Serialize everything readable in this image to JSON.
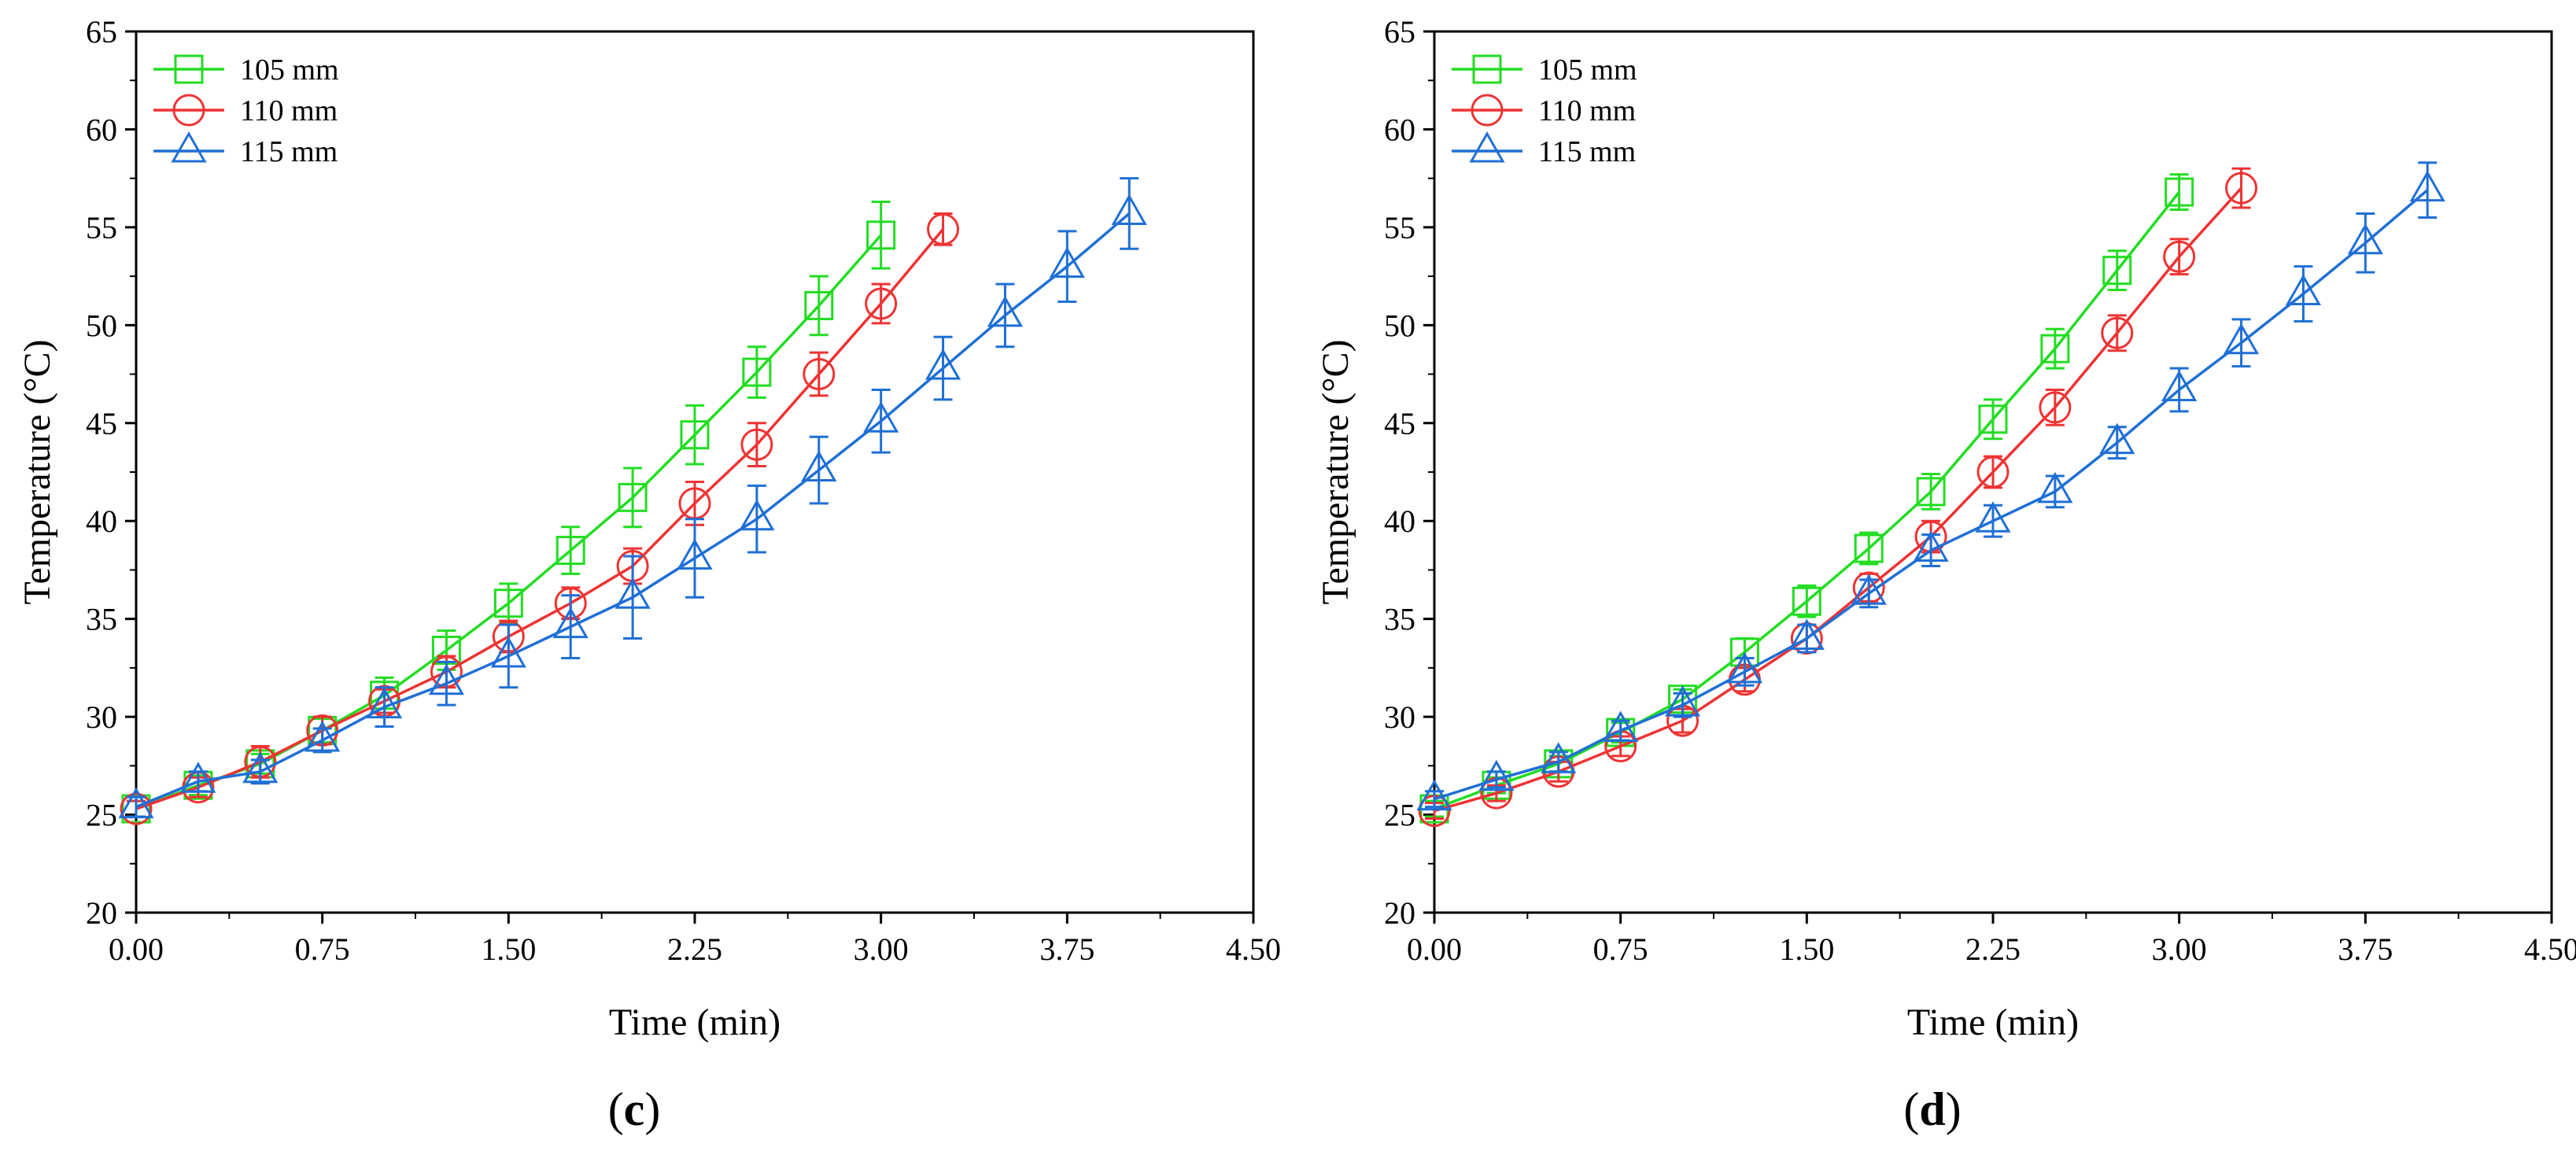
{
  "chart_data": [
    {
      "type": "line",
      "panel_label": {
        "open": "(",
        "letter": "c",
        "close": ")"
      },
      "xlabel": "Time (min)",
      "ylabel": "Temperature (°C)",
      "xlim": [
        0,
        4.5
      ],
      "ylim": [
        20,
        65
      ],
      "x_ticks": [
        "0.00",
        "0.75",
        "1.50",
        "2.25",
        "3.00",
        "3.75",
        "4.50"
      ],
      "y_ticks": [
        "20",
        "25",
        "30",
        "35",
        "40",
        "45",
        "50",
        "55",
        "60",
        "65"
      ],
      "legend_position": "top-left",
      "series": [
        {
          "name": "105 mm",
          "color": "#22dd22",
          "marker": "square",
          "x": [
            0,
            0.25,
            0.5,
            0.75,
            1.0,
            1.25,
            1.5,
            1.75,
            2.0,
            2.25,
            2.5,
            2.75,
            3.0
          ],
          "y": [
            25.3,
            26.5,
            27.6,
            29.3,
            31.1,
            33.4,
            35.8,
            38.5,
            41.2,
            44.4,
            47.6,
            51.0,
            54.6
          ],
          "err": [
            0.4,
            0.5,
            0.5,
            0.6,
            0.9,
            1.0,
            1.0,
            1.2,
            1.5,
            1.5,
            1.3,
            1.5,
            1.7
          ]
        },
        {
          "name": "110 mm",
          "color": "#ee3333",
          "marker": "circle",
          "x": [
            0,
            0.25,
            0.5,
            0.75,
            1.0,
            1.25,
            1.5,
            1.75,
            2.0,
            2.25,
            2.5,
            2.75,
            3.0,
            3.25
          ],
          "y": [
            25.3,
            26.4,
            27.7,
            29.3,
            30.8,
            32.3,
            34.1,
            35.8,
            37.7,
            40.9,
            43.9,
            47.5,
            51.1,
            54.9
          ],
          "err": [
            0.4,
            0.5,
            0.8,
            0.7,
            0.6,
            0.8,
            0.8,
            0.8,
            0.9,
            1.1,
            1.1,
            1.1,
            1.0,
            0.8
          ]
        },
        {
          "name": "115 mm",
          "color": "#1f6fd6",
          "marker": "triangle",
          "x": [
            0,
            0.25,
            0.5,
            0.75,
            1.0,
            1.25,
            1.5,
            1.75,
            2.0,
            2.25,
            2.5,
            2.75,
            3.0,
            3.25,
            3.5,
            3.75,
            4.0
          ],
          "y": [
            25.4,
            26.7,
            27.2,
            28.8,
            30.5,
            31.7,
            33.1,
            34.6,
            36.1,
            38.1,
            40.1,
            42.6,
            45.1,
            47.8,
            50.5,
            53.0,
            55.7
          ],
          "err": [
            0.5,
            0.5,
            0.6,
            0.6,
            1.0,
            1.1,
            1.6,
            1.6,
            2.1,
            2.0,
            1.7,
            1.7,
            1.6,
            1.6,
            1.6,
            1.8,
            1.8
          ]
        }
      ]
    },
    {
      "type": "line",
      "panel_label": {
        "open": "(",
        "letter": "d",
        "close": ")"
      },
      "xlabel": "Time (min)",
      "ylabel": "Temperature (°C)",
      "xlim": [
        0,
        4.5
      ],
      "ylim": [
        20,
        65
      ],
      "x_ticks": [
        "0.00",
        "0.75",
        "1.50",
        "2.25",
        "3.00",
        "3.75",
        "4.50"
      ],
      "y_ticks": [
        "20",
        "25",
        "30",
        "35",
        "40",
        "45",
        "50",
        "55",
        "60",
        "65"
      ],
      "legend_position": "top-left",
      "series": [
        {
          "name": "105 mm",
          "color": "#22dd22",
          "marker": "square",
          "x": [
            0,
            0.25,
            0.5,
            0.75,
            1.0,
            1.25,
            1.5,
            1.75,
            2.0,
            2.25,
            2.5,
            2.75,
            3.0
          ],
          "y": [
            25.3,
            26.5,
            27.6,
            29.2,
            30.9,
            33.3,
            35.9,
            38.6,
            41.5,
            45.2,
            48.8,
            52.8,
            56.8
          ],
          "err": [
            0.4,
            0.4,
            0.4,
            0.5,
            0.5,
            0.7,
            0.8,
            0.8,
            0.9,
            1.0,
            1.0,
            1.0,
            0.9
          ]
        },
        {
          "name": "110 mm",
          "color": "#ee3333",
          "marker": "circle",
          "x": [
            0,
            0.25,
            0.5,
            0.75,
            1.0,
            1.25,
            1.5,
            1.75,
            2.0,
            2.25,
            2.5,
            2.75,
            3.0,
            3.25
          ],
          "y": [
            25.2,
            26.1,
            27.2,
            28.5,
            29.8,
            31.9,
            34.0,
            36.6,
            39.2,
            42.5,
            45.8,
            49.6,
            53.5,
            57.0
          ],
          "err": [
            0.4,
            0.4,
            0.5,
            0.5,
            0.6,
            0.6,
            0.7,
            0.7,
            0.8,
            0.8,
            0.9,
            0.9,
            0.9,
            1.0
          ]
        },
        {
          "name": "115 mm",
          "color": "#1f6fd6",
          "marker": "triangle",
          "x": [
            0,
            0.25,
            0.5,
            0.75,
            1.0,
            1.25,
            1.5,
            1.75,
            2.0,
            2.25,
            2.5,
            2.75,
            3.0,
            3.25,
            3.5,
            3.75,
            4.0
          ],
          "y": [
            25.8,
            26.8,
            27.7,
            29.3,
            30.6,
            32.3,
            34.0,
            36.3,
            38.5,
            40.0,
            41.5,
            44.0,
            46.7,
            49.1,
            51.6,
            54.2,
            56.9
          ],
          "err": [
            0.4,
            0.4,
            0.5,
            0.5,
            0.6,
            0.7,
            0.7,
            0.7,
            0.8,
            0.8,
            0.8,
            0.8,
            1.1,
            1.2,
            1.4,
            1.5,
            1.4
          ]
        }
      ]
    }
  ]
}
